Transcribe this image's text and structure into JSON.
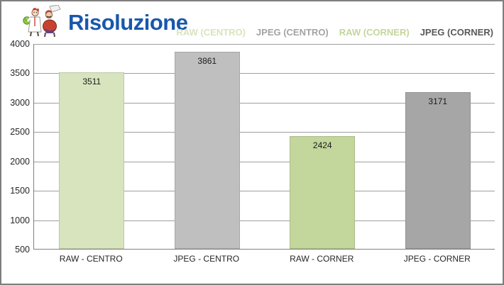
{
  "window": {
    "background": "#ffffff",
    "border_color": "#7f7f7f"
  },
  "header": {
    "title": "Risoluzione",
    "title_color": "#1958ab",
    "logo_name": "mascot-cartoon-logo"
  },
  "legend": {
    "position": "top-right",
    "entries": [
      {
        "label": "RAW (CENTRO)",
        "color": "#d7e4bd"
      },
      {
        "label": "JPEG (CENTRO)",
        "color": "#a3a3a3"
      },
      {
        "label": "RAW (CORNER)",
        "color": "#c3d69b"
      },
      {
        "label": "JPEG (CORNER)",
        "color": "#595959"
      }
    ]
  },
  "chart_data": {
    "type": "bar",
    "title": "Risoluzione",
    "categories": [
      "RAW - CENTRO",
      "JPEG - CENTRO",
      "RAW - CORNER",
      "JPEG - CORNER"
    ],
    "values": [
      3511,
      3861,
      2424,
      3171
    ],
    "bar_colors": [
      "#d7e4bd",
      "#bfbfbf",
      "#c3d69b",
      "#a6a6a6"
    ],
    "xlabel": "",
    "ylabel": "",
    "ylim": [
      500,
      4000
    ],
    "yticks": [
      500,
      1000,
      1500,
      2000,
      2500,
      3000,
      3500,
      4000
    ],
    "grid": "horizontal",
    "gridline_color": "#9e9e9e",
    "axis_color": "#808080",
    "legend_position": "top-right"
  }
}
